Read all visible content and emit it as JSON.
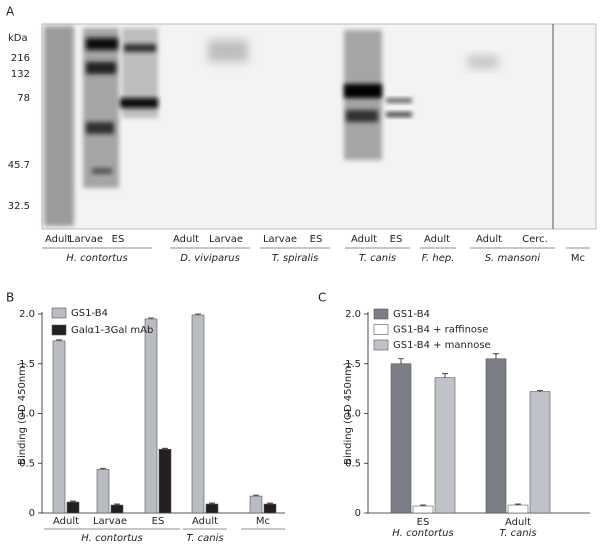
{
  "blot": {
    "panel_label": "A",
    "unit": "kDa",
    "markers": [
      216,
      132,
      78,
      45.7,
      32.5
    ],
    "lanes": [
      "Adult",
      "Larvae",
      "ES",
      "Adult",
      "Larvae",
      "Larvae",
      "ES",
      "Adult",
      "ES",
      "Adult",
      "Adult",
      "Cerc."
    ],
    "groups": [
      "H. contortus",
      "D. viviparus",
      "T. spiralis",
      "T. canis",
      "F. hep.",
      "S. mansoni",
      "Mc"
    ]
  },
  "chart_data": [
    {
      "type": "bar",
      "panel_label": "B",
      "ylabel": "Binding (OD 450nm)",
      "categories": [
        "Adult",
        "Larvae",
        "ES",
        "Adult",
        "Mc"
      ],
      "category_groups": [
        "H. contortus",
        "H. contortus",
        "H. contortus",
        "T. canis",
        null
      ],
      "series": [
        {
          "name": "GS1-B4",
          "color": "#b9bcc3",
          "values": [
            1.73,
            0.44,
            1.95,
            1.99,
            0.17
          ],
          "errors": [
            0.01,
            0.01,
            0.01,
            0.01,
            0.01
          ]
        },
        {
          "name": "Galα1-3Gal mAb",
          "color": "#231f20",
          "values": [
            0.11,
            0.08,
            0.64,
            0.09,
            0.09
          ],
          "errors": [
            0.01,
            0.01,
            0.01,
            0.01,
            0.01
          ]
        }
      ],
      "ylim": [
        0,
        2.0
      ],
      "yticks": [
        0,
        0.5,
        {
          "value": 1.0,
          "label": "1.0"
        },
        1.5,
        {
          "value": 2.0,
          "label": "2.0"
        }
      ]
    },
    {
      "type": "bar",
      "panel_label": "C",
      "ylabel": "Binding (OD 450nm)",
      "categories": [
        "ES",
        "Adult"
      ],
      "category_groups": [
        "H. contortus",
        "T. canis"
      ],
      "series": [
        {
          "name": "GS1-B4",
          "color": "#7b7e86",
          "values": [
            1.5,
            1.55
          ],
          "errors": [
            0.05,
            0.05
          ]
        },
        {
          "name": "GS1-B4 + raffinose",
          "color": "#ffffff",
          "values": [
            0.07,
            0.08
          ],
          "errors": [
            0.01,
            0.01
          ]
        },
        {
          "name": "GS1-B4 + mannose",
          "color": "#bfc2c8",
          "values": [
            1.36,
            1.22
          ],
          "errors": [
            0.04,
            0.01
          ]
        }
      ],
      "ylim": [
        0,
        2.0
      ],
      "yticks": [
        0,
        0.5,
        {
          "value": 1.0,
          "label": "1.0"
        },
        1.5,
        {
          "value": 2.0,
          "label": "2.0"
        }
      ]
    }
  ]
}
